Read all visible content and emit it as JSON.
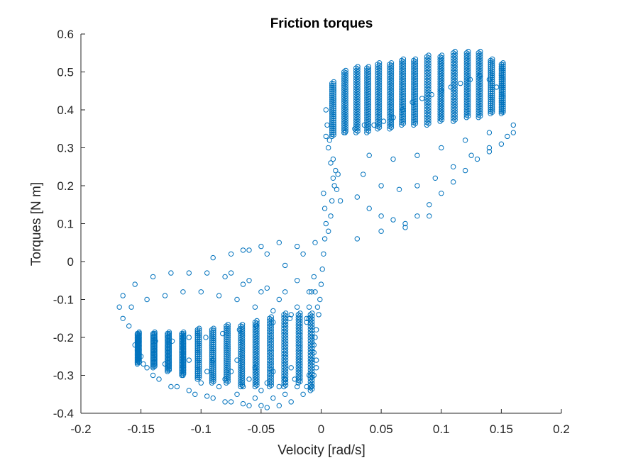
{
  "chart_data": {
    "type": "scatter",
    "title": "Friction torques",
    "xlabel": "Velocity [rad/s]",
    "ylabel": "Torques [N m]",
    "xlim": [
      -0.2,
      0.2
    ],
    "ylim": [
      -0.4,
      0.6
    ],
    "xticks": [
      -0.2,
      -0.15,
      -0.1,
      -0.05,
      0,
      0.05,
      0.1,
      0.15,
      0.2
    ],
    "xtick_labels": [
      "-0.2",
      "-0.15",
      "-0.1",
      "-0.05",
      "0",
      "0.05",
      "0.1",
      "0.15",
      "0.2"
    ],
    "yticks": [
      -0.4,
      -0.3,
      -0.2,
      -0.1,
      0,
      0.1,
      0.2,
      0.3,
      0.4,
      0.5,
      0.6
    ],
    "ytick_labels": [
      "-0.4",
      "-0.3",
      "-0.2",
      "-0.1",
      "0",
      "0.1",
      "0.2",
      "0.3",
      "0.4",
      "0.5",
      "0.6"
    ],
    "grid": false,
    "marker": "open-circle",
    "color": "#0072BD",
    "series": [
      {
        "name": "",
        "points": [
          [
            0.004,
            0.33
          ],
          [
            0.006,
            0.3
          ],
          [
            0.008,
            0.26
          ],
          [
            0.01,
            0.22
          ],
          [
            0.013,
            0.19
          ],
          [
            0.016,
            0.16
          ],
          [
            0.004,
            0.4
          ],
          [
            0.005,
            0.36
          ],
          [
            0.007,
            0.32
          ],
          [
            0.01,
            0.27
          ],
          [
            0.012,
            0.24
          ],
          [
            0.002,
            0.18
          ],
          [
            0.003,
            0.14
          ],
          [
            0.004,
            0.1
          ],
          [
            0.003,
            0.06
          ],
          [
            0.002,
            0.02
          ],
          [
            0.001,
            -0.02
          ],
          [
            0.0,
            -0.06
          ],
          [
            -0.001,
            -0.1
          ],
          [
            -0.002,
            -0.14
          ],
          [
            -0.004,
            -0.18
          ],
          [
            -0.006,
            -0.22
          ],
          [
            -0.008,
            -0.26
          ],
          [
            -0.01,
            -0.3
          ],
          [
            -0.012,
            -0.33
          ],
          [
            -0.004,
            -0.28
          ],
          [
            -0.006,
            -0.24
          ],
          [
            -0.003,
            -0.12
          ],
          [
            -0.005,
            -0.08
          ],
          [
            0.006,
            0.08
          ],
          [
            0.008,
            0.12
          ],
          [
            0.009,
            0.16
          ],
          [
            0.011,
            0.2
          ],
          [
            0.014,
            0.23
          ],
          [
            -0.006,
            -0.04
          ],
          [
            -0.008,
            -0.08
          ],
          [
            -0.01,
            -0.12
          ],
          [
            -0.012,
            -0.16
          ],
          [
            0.02,
            0.34
          ],
          [
            0.028,
            0.35
          ],
          [
            0.036,
            0.36
          ],
          [
            0.044,
            0.36
          ],
          [
            0.052,
            0.37
          ],
          [
            0.06,
            0.38
          ],
          [
            0.068,
            0.4
          ],
          [
            0.076,
            0.42
          ],
          [
            0.084,
            0.43
          ],
          [
            0.092,
            0.44
          ],
          [
            0.1,
            0.45
          ],
          [
            0.108,
            0.46
          ],
          [
            0.116,
            0.47
          ],
          [
            0.124,
            0.48
          ],
          [
            0.132,
            0.49
          ],
          [
            0.14,
            0.48
          ],
          [
            0.146,
            0.46
          ],
          [
            0.15,
            0.43
          ],
          [
            0.03,
            0.17
          ],
          [
            0.04,
            0.14
          ],
          [
            0.05,
            0.12
          ],
          [
            0.06,
            0.11
          ],
          [
            0.07,
            0.1
          ],
          [
            0.08,
            0.12
          ],
          [
            0.09,
            0.15
          ],
          [
            0.1,
            0.18
          ],
          [
            0.11,
            0.21
          ],
          [
            0.12,
            0.24
          ],
          [
            0.13,
            0.27
          ],
          [
            0.14,
            0.29
          ],
          [
            0.15,
            0.31
          ],
          [
            0.16,
            0.34
          ],
          [
            0.035,
            0.23
          ],
          [
            0.05,
            0.2
          ],
          [
            0.065,
            0.19
          ],
          [
            0.08,
            0.2
          ],
          [
            0.095,
            0.22
          ],
          [
            0.11,
            0.25
          ],
          [
            0.125,
            0.28
          ],
          [
            0.14,
            0.3
          ],
          [
            0.155,
            0.33
          ],
          [
            0.04,
            0.28
          ],
          [
            0.06,
            0.27
          ],
          [
            0.08,
            0.28
          ],
          [
            0.1,
            0.3
          ],
          [
            0.12,
            0.32
          ],
          [
            0.14,
            0.34
          ],
          [
            0.16,
            0.36
          ],
          [
            0.03,
            0.06
          ],
          [
            0.05,
            0.08
          ],
          [
            0.07,
            0.09
          ],
          [
            0.09,
            0.12
          ],
          [
            -0.02,
            -0.12
          ],
          [
            -0.035,
            -0.1
          ],
          [
            -0.05,
            -0.08
          ],
          [
            -0.065,
            -0.06
          ],
          [
            -0.08,
            -0.04
          ],
          [
            -0.095,
            -0.03
          ],
          [
            -0.11,
            -0.03
          ],
          [
            -0.125,
            -0.03
          ],
          [
            -0.14,
            -0.04
          ],
          [
            -0.155,
            -0.06
          ],
          [
            -0.165,
            -0.09
          ],
          [
            -0.168,
            -0.12
          ],
          [
            -0.165,
            -0.15
          ],
          [
            -0.16,
            -0.17
          ],
          [
            -0.025,
            -0.14
          ],
          [
            -0.04,
            -0.13
          ],
          [
            -0.055,
            -0.12
          ],
          [
            -0.07,
            -0.1
          ],
          [
            -0.085,
            -0.09
          ],
          [
            -0.1,
            -0.08
          ],
          [
            -0.115,
            -0.08
          ],
          [
            -0.13,
            -0.09
          ],
          [
            -0.145,
            -0.1
          ],
          [
            -0.158,
            -0.12
          ],
          [
            -0.03,
            -0.01
          ],
          [
            -0.045,
            0.02
          ],
          [
            -0.06,
            0.03
          ],
          [
            -0.075,
            0.02
          ],
          [
            -0.09,
            0.01
          ],
          [
            -0.02,
            0.04
          ],
          [
            -0.035,
            0.05
          ],
          [
            -0.05,
            0.04
          ],
          [
            -0.065,
            0.03
          ],
          [
            -0.03,
            -0.08
          ],
          [
            -0.045,
            -0.07
          ],
          [
            -0.06,
            -0.05
          ],
          [
            -0.075,
            -0.03
          ],
          [
            -0.01,
            -0.15
          ],
          [
            -0.02,
            -0.05
          ],
          [
            -0.01,
            -0.08
          ],
          [
            -0.015,
            0.02
          ],
          [
            -0.005,
            0.05
          ],
          [
            -0.155,
            -0.22
          ],
          [
            -0.15,
            -0.25
          ],
          [
            -0.145,
            -0.28
          ],
          [
            -0.135,
            -0.31
          ],
          [
            -0.12,
            -0.33
          ],
          [
            -0.105,
            -0.35
          ],
          [
            -0.09,
            -0.36
          ],
          [
            -0.075,
            -0.37
          ],
          [
            -0.06,
            -0.38
          ],
          [
            -0.045,
            -0.385
          ],
          [
            -0.035,
            -0.38
          ],
          [
            -0.025,
            -0.37
          ],
          [
            -0.015,
            -0.35
          ],
          [
            -0.008,
            -0.33
          ],
          [
            -0.148,
            -0.27
          ],
          [
            -0.14,
            -0.3
          ],
          [
            -0.125,
            -0.33
          ],
          [
            -0.11,
            -0.34
          ],
          [
            -0.095,
            -0.355
          ],
          [
            -0.08,
            -0.37
          ],
          [
            -0.065,
            -0.375
          ],
          [
            -0.05,
            -0.38
          ],
          [
            -0.13,
            -0.27
          ],
          [
            -0.115,
            -0.3
          ],
          [
            -0.1,
            -0.32
          ],
          [
            -0.085,
            -0.33
          ],
          [
            -0.07,
            -0.35
          ],
          [
            -0.055,
            -0.36
          ],
          [
            -0.04,
            -0.36
          ],
          [
            -0.03,
            -0.35
          ],
          [
            -0.02,
            -0.33
          ],
          [
            -0.11,
            -0.26
          ],
          [
            -0.095,
            -0.29
          ],
          [
            -0.08,
            -0.31
          ],
          [
            -0.065,
            -0.33
          ],
          [
            -0.05,
            -0.34
          ],
          [
            -0.035,
            -0.33
          ],
          [
            -0.022,
            -0.31
          ],
          [
            -0.09,
            -0.26
          ],
          [
            -0.075,
            -0.29
          ],
          [
            -0.06,
            -0.31
          ],
          [
            -0.045,
            -0.32
          ],
          [
            -0.03,
            -0.31
          ],
          [
            -0.07,
            -0.26
          ],
          [
            -0.055,
            -0.28
          ],
          [
            -0.04,
            -0.29
          ],
          [
            -0.025,
            -0.28
          ],
          [
            -0.152,
            -0.21
          ],
          [
            -0.138,
            -0.21
          ],
          [
            -0.124,
            -0.21
          ],
          [
            -0.11,
            -0.2
          ],
          [
            -0.096,
            -0.2
          ],
          [
            -0.082,
            -0.19
          ],
          [
            -0.068,
            -0.18
          ],
          [
            -0.054,
            -0.17
          ],
          [
            -0.04,
            -0.16
          ],
          [
            -0.026,
            -0.15
          ],
          [
            -0.012,
            -0.15
          ],
          [
            -0.005,
            -0.2
          ],
          [
            -0.004,
            -0.26
          ],
          [
            -0.006,
            -0.3
          ]
        ]
      }
    ],
    "stripes": [
      {
        "x": 0.009,
        "y0": 0.33,
        "y1": 0.47,
        "dense": true
      },
      {
        "x": 0.019,
        "y0": 0.34,
        "y1": 0.5,
        "dense": true
      },
      {
        "x": 0.029,
        "y0": 0.34,
        "y1": 0.51,
        "dense": true
      },
      {
        "x": 0.038,
        "y0": 0.34,
        "y1": 0.51,
        "dense": true
      },
      {
        "x": 0.047,
        "y0": 0.35,
        "y1": 0.52,
        "dense": true
      },
      {
        "x": 0.057,
        "y0": 0.35,
        "y1": 0.52,
        "dense": true
      },
      {
        "x": 0.067,
        "y0": 0.36,
        "y1": 0.53,
        "dense": true
      },
      {
        "x": 0.077,
        "y0": 0.36,
        "y1": 0.53,
        "dense": true
      },
      {
        "x": 0.088,
        "y0": 0.36,
        "y1": 0.54,
        "dense": true
      },
      {
        "x": 0.099,
        "y0": 0.37,
        "y1": 0.54,
        "dense": true
      },
      {
        "x": 0.11,
        "y0": 0.37,
        "y1": 0.55,
        "dense": true
      },
      {
        "x": 0.121,
        "y0": 0.38,
        "y1": 0.55,
        "dense": true
      },
      {
        "x": 0.131,
        "y0": 0.38,
        "y1": 0.55,
        "dense": true
      },
      {
        "x": 0.141,
        "y0": 0.39,
        "y1": 0.53,
        "dense": true
      },
      {
        "x": 0.15,
        "y0": 0.39,
        "y1": 0.52,
        "dense": true
      },
      {
        "x": -0.153,
        "y0": -0.27,
        "y1": -0.19,
        "dense": true
      },
      {
        "x": -0.14,
        "y0": -0.28,
        "y1": -0.19,
        "dense": true
      },
      {
        "x": -0.128,
        "y0": -0.29,
        "y1": -0.19,
        "dense": true
      },
      {
        "x": -0.116,
        "y0": -0.3,
        "y1": -0.19,
        "dense": true
      },
      {
        "x": -0.103,
        "y0": -0.31,
        "y1": -0.18,
        "dense": true
      },
      {
        "x": -0.091,
        "y0": -0.32,
        "y1": -0.18,
        "dense": true
      },
      {
        "x": -0.079,
        "y0": -0.32,
        "y1": -0.17,
        "dense": true
      },
      {
        "x": -0.067,
        "y0": -0.33,
        "y1": -0.17,
        "dense": true
      },
      {
        "x": -0.055,
        "y0": -0.33,
        "y1": -0.16,
        "dense": true
      },
      {
        "x": -0.043,
        "y0": -0.33,
        "y1": -0.15,
        "dense": true
      },
      {
        "x": -0.031,
        "y0": -0.33,
        "y1": -0.14,
        "dense": true
      },
      {
        "x": -0.019,
        "y0": -0.32,
        "y1": -0.14,
        "dense": true
      },
      {
        "x": -0.009,
        "y0": -0.34,
        "y1": -0.14,
        "dense": true
      }
    ]
  }
}
